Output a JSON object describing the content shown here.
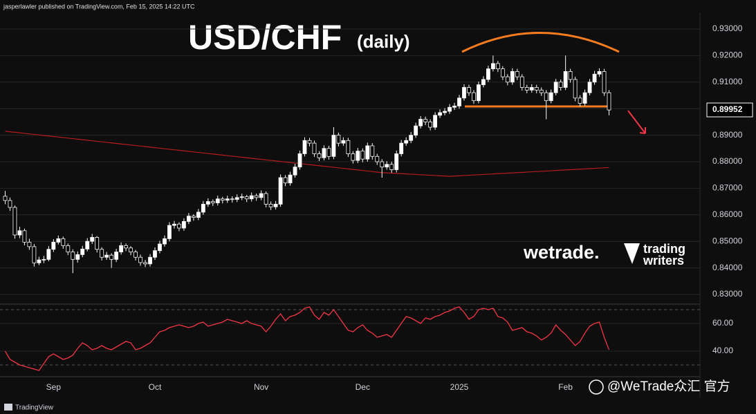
{
  "header": {
    "publisher": "jasperlawler published on TradingView.com, Feb 15, 2025 14:22 UTC"
  },
  "footer": {
    "brand": "TradingView"
  },
  "watermarks": {
    "broker": "wetrade.",
    "logo_top": "trading",
    "logo_bottom": "writers",
    "overlay": "@WeTrade众汇 官方"
  },
  "chart_data": [
    {
      "type": "candlestick",
      "title": "USD/CHF",
      "subtitle": "(daily)",
      "up_color": "#ffffff",
      "down_color": "#000000",
      "grid": true,
      "ylim": [
        0.82635,
        0.93573
      ],
      "yticks": [
        {
          "value": 0.93,
          "label": "0.93000"
        },
        {
          "value": 0.92,
          "label": "0.92000"
        },
        {
          "value": 0.91,
          "label": "0.91000"
        },
        {
          "value": 0.9,
          "label": "0.90000"
        },
        {
          "value": 0.89,
          "label": "0.89000"
        },
        {
          "value": 0.88,
          "label": "0.88000"
        },
        {
          "value": 0.87,
          "label": "0.87000"
        },
        {
          "value": 0.86,
          "label": "0.86000"
        },
        {
          "value": 0.85,
          "label": "0.85000"
        },
        {
          "value": 0.84,
          "label": "0.84000"
        },
        {
          "value": 0.83,
          "label": "0.83000"
        }
      ],
      "last_price": 0.89952,
      "categories": [
        null,
        null,
        null,
        null,
        null,
        null,
        null,
        null,
        null,
        null,
        "Sep",
        null,
        null,
        null,
        null,
        null,
        null,
        null,
        null,
        null,
        null,
        null,
        null,
        null,
        null,
        null,
        null,
        null,
        null,
        null,
        null,
        "Oct",
        null,
        null,
        null,
        null,
        null,
        null,
        null,
        null,
        null,
        null,
        null,
        null,
        null,
        null,
        null,
        null,
        null,
        null,
        null,
        null,
        null,
        "Nov",
        null,
        null,
        null,
        null,
        null,
        null,
        null,
        null,
        null,
        null,
        null,
        null,
        null,
        null,
        null,
        null,
        null,
        null,
        null,
        null,
        "Dec",
        null,
        null,
        null,
        null,
        null,
        null,
        null,
        null,
        null,
        null,
        null,
        null,
        null,
        null,
        null,
        null,
        null,
        null,
        null,
        "2025",
        null,
        null,
        null,
        null,
        null,
        null,
        null,
        null,
        null,
        null,
        null,
        null,
        null,
        null,
        null,
        null,
        null,
        null,
        null,
        null,
        null,
        "Feb",
        null,
        null,
        null,
        null,
        null,
        null,
        null,
        null,
        null
      ],
      "candles": [
        [
          0.867,
          0.869,
          0.864,
          0.8654
        ],
        [
          0.8654,
          0.8665,
          0.8615,
          0.8628
        ],
        [
          0.8628,
          0.8635,
          0.851,
          0.8524
        ],
        [
          0.8524,
          0.8555,
          0.8512,
          0.854
        ],
        [
          0.854,
          0.8548,
          0.8485,
          0.8497
        ],
        [
          0.8497,
          0.851,
          0.8468,
          0.848
        ],
        [
          0.848,
          0.849,
          0.8405,
          0.8419
        ],
        [
          0.8419,
          0.8442,
          0.841,
          0.843
        ],
        [
          0.843,
          0.8445,
          0.8418,
          0.8432
        ],
        [
          0.8432,
          0.8482,
          0.8425,
          0.847
        ],
        [
          0.847,
          0.8508,
          0.846,
          0.8497
        ],
        [
          0.8497,
          0.8522,
          0.8488,
          0.851
        ],
        [
          0.851,
          0.8518,
          0.8472,
          0.8484
        ],
        [
          0.8484,
          0.8492,
          0.8448,
          0.846
        ],
        [
          0.846,
          0.847,
          0.838,
          0.8432
        ],
        [
          0.8432,
          0.8462,
          0.842,
          0.845
        ],
        [
          0.845,
          0.8483,
          0.844,
          0.8471
        ],
        [
          0.8471,
          0.8512,
          0.8462,
          0.85
        ],
        [
          0.85,
          0.8528,
          0.849,
          0.8515
        ],
        [
          0.8515,
          0.852,
          0.8458,
          0.847
        ],
        [
          0.847,
          0.8478,
          0.8428,
          0.844
        ],
        [
          0.844,
          0.846,
          0.843,
          0.8448
        ],
        [
          0.8448,
          0.8455,
          0.84,
          0.8432
        ],
        [
          0.8432,
          0.8472,
          0.8422,
          0.846
        ],
        [
          0.846,
          0.8496,
          0.845,
          0.8484
        ],
        [
          0.8484,
          0.8492,
          0.8463,
          0.8475
        ],
        [
          0.8475,
          0.8482,
          0.8448,
          0.846
        ],
        [
          0.846,
          0.8468,
          0.8428,
          0.844
        ],
        [
          0.844,
          0.845,
          0.8408,
          0.842
        ],
        [
          0.842,
          0.843,
          0.8403,
          0.8415
        ],
        [
          0.8415,
          0.8452,
          0.8405,
          0.844
        ],
        [
          0.844,
          0.8477,
          0.843,
          0.8465
        ],
        [
          0.8465,
          0.8502,
          0.8455,
          0.849
        ],
        [
          0.849,
          0.8522,
          0.848,
          0.851
        ],
        [
          0.851,
          0.8572,
          0.85,
          0.856
        ],
        [
          0.856,
          0.8577,
          0.8548,
          0.8565
        ],
        [
          0.8565,
          0.8572,
          0.8538,
          0.855
        ],
        [
          0.855,
          0.8587,
          0.854,
          0.8575
        ],
        [
          0.8575,
          0.8607,
          0.8565,
          0.8595
        ],
        [
          0.8595,
          0.8602,
          0.8578,
          0.859
        ],
        [
          0.859,
          0.8622,
          0.858,
          0.861
        ],
        [
          0.861,
          0.8652,
          0.86,
          0.864
        ],
        [
          0.864,
          0.8662,
          0.863,
          0.865
        ],
        [
          0.865,
          0.8658,
          0.8633,
          0.8645
        ],
        [
          0.8645,
          0.8672,
          0.8635,
          0.866
        ],
        [
          0.866,
          0.8668,
          0.8643,
          0.8655
        ],
        [
          0.8655,
          0.8672,
          0.8645,
          0.866
        ],
        [
          0.866,
          0.867,
          0.8646,
          0.8658
        ],
        [
          0.8658,
          0.8677,
          0.8648,
          0.8665
        ],
        [
          0.8665,
          0.868,
          0.8655,
          0.8668
        ],
        [
          0.8668,
          0.8675,
          0.8648,
          0.866
        ],
        [
          0.866,
          0.8684,
          0.865,
          0.8672
        ],
        [
          0.8672,
          0.868,
          0.8653,
          0.8665
        ],
        [
          0.8665,
          0.8692,
          0.8655,
          0.868
        ],
        [
          0.868,
          0.8688,
          0.8628,
          0.864
        ],
        [
          0.864,
          0.865,
          0.8618,
          0.863
        ],
        [
          0.863,
          0.8652,
          0.862,
          0.864
        ],
        [
          0.864,
          0.8752,
          0.863,
          0.874
        ],
        [
          0.874,
          0.875,
          0.8708,
          0.872
        ],
        [
          0.872,
          0.8762,
          0.871,
          0.875
        ],
        [
          0.875,
          0.8792,
          0.874,
          0.878
        ],
        [
          0.878,
          0.8842,
          0.877,
          0.883
        ],
        [
          0.883,
          0.8892,
          0.882,
          0.888
        ],
        [
          0.888,
          0.889,
          0.8858,
          0.887
        ],
        [
          0.887,
          0.888,
          0.8818,
          0.883
        ],
        [
          0.883,
          0.884,
          0.8803,
          0.8815
        ],
        [
          0.8815,
          0.8862,
          0.8805,
          0.885
        ],
        [
          0.885,
          0.886,
          0.8808,
          0.882
        ],
        [
          0.882,
          0.893,
          0.881,
          0.89
        ],
        [
          0.89,
          0.891,
          0.8858,
          0.887
        ],
        [
          0.887,
          0.8892,
          0.886,
          0.888
        ],
        [
          0.888,
          0.889,
          0.8818,
          0.883
        ],
        [
          0.883,
          0.884,
          0.8793,
          0.8805
        ],
        [
          0.8805,
          0.8852,
          0.8795,
          0.884
        ],
        [
          0.884,
          0.885,
          0.8798,
          0.881
        ],
        [
          0.881,
          0.8872,
          0.88,
          0.886
        ],
        [
          0.886,
          0.887,
          0.8808,
          0.882
        ],
        [
          0.882,
          0.883,
          0.8788,
          0.88
        ],
        [
          0.88,
          0.881,
          0.874,
          0.878
        ],
        [
          0.878,
          0.8802,
          0.877,
          0.879
        ],
        [
          0.879,
          0.88,
          0.8758,
          0.877
        ],
        [
          0.877,
          0.8842,
          0.876,
          0.883
        ],
        [
          0.883,
          0.8882,
          0.882,
          0.887
        ],
        [
          0.887,
          0.8892,
          0.886,
          0.888
        ],
        [
          0.888,
          0.8912,
          0.887,
          0.89
        ],
        [
          0.89,
          0.8947,
          0.889,
          0.8935
        ],
        [
          0.8935,
          0.8972,
          0.8925,
          0.896
        ],
        [
          0.896,
          0.897,
          0.8938,
          0.895
        ],
        [
          0.895,
          0.896,
          0.8918,
          0.893
        ],
        [
          0.893,
          0.8987,
          0.892,
          0.8975
        ],
        [
          0.8975,
          0.8997,
          0.8965,
          0.8985
        ],
        [
          0.8985,
          0.9002,
          0.8975,
          0.899
        ],
        [
          0.899,
          0.9017,
          0.898,
          0.9005
        ],
        [
          0.9005,
          0.9022,
          0.8995,
          0.901
        ],
        [
          0.901,
          0.9052,
          0.9,
          0.904
        ],
        [
          0.904,
          0.9092,
          0.903,
          0.908
        ],
        [
          0.908,
          0.909,
          0.9048,
          0.906
        ],
        [
          0.906,
          0.907,
          0.9018,
          0.903
        ],
        [
          0.903,
          0.9102,
          0.902,
          0.909
        ],
        [
          0.909,
          0.9122,
          0.908,
          0.911
        ],
        [
          0.911,
          0.9162,
          0.91,
          0.915
        ],
        [
          0.915,
          0.92,
          0.914,
          0.917
        ],
        [
          0.917,
          0.918,
          0.9138,
          0.915
        ],
        [
          0.915,
          0.916,
          0.9108,
          0.912
        ],
        [
          0.912,
          0.913,
          0.9088,
          0.91
        ],
        [
          0.91,
          0.9152,
          0.909,
          0.914
        ],
        [
          0.914,
          0.915,
          0.9108,
          0.912
        ],
        [
          0.912,
          0.913,
          0.9068,
          0.908
        ],
        [
          0.908,
          0.909,
          0.9058,
          0.907
        ],
        [
          0.907,
          0.9092,
          0.906,
          0.908
        ],
        [
          0.908,
          0.909,
          0.9058,
          0.907
        ],
        [
          0.907,
          0.908,
          0.9048,
          0.906
        ],
        [
          0.906,
          0.907,
          0.896,
          0.903
        ],
        [
          0.903,
          0.9072,
          0.902,
          0.906
        ],
        [
          0.906,
          0.9112,
          0.905,
          0.91
        ],
        [
          0.91,
          0.911,
          0.9068,
          0.908
        ],
        [
          0.908,
          0.92,
          0.907,
          0.914
        ],
        [
          0.914,
          0.915,
          0.9098,
          0.911
        ],
        [
          0.911,
          0.912,
          0.9028,
          0.904
        ],
        [
          0.904,
          0.905,
          0.9008,
          0.902
        ],
        [
          0.902,
          0.9072,
          0.901,
          0.906
        ],
        [
          0.906,
          0.9112,
          0.905,
          0.91
        ],
        [
          0.91,
          0.9142,
          0.909,
          0.913
        ],
        [
          0.913,
          0.9152,
          0.912,
          0.914
        ],
        [
          0.914,
          0.915,
          0.9048,
          0.906
        ],
        [
          0.906,
          0.907,
          0.8975,
          0.8995
        ]
      ],
      "ma": {
        "color": "#b71c1c",
        "values": [
          0.8915,
          0.8913,
          0.8911,
          0.8909,
          0.8907,
          0.8905,
          0.8903,
          0.8901,
          0.8899,
          0.8897,
          0.8895,
          0.8893,
          0.8891,
          0.8889,
          0.8887,
          0.8885,
          0.8883,
          0.8881,
          0.8879,
          0.8877,
          0.8875,
          0.8873,
          0.8871,
          0.8869,
          0.8867,
          0.8865,
          0.8863,
          0.8861,
          0.8859,
          0.8857,
          0.8855,
          0.8853,
          0.8851,
          0.8849,
          0.8847,
          0.8845,
          0.8843,
          0.8841,
          0.8839,
          0.8837,
          0.8835,
          0.8833,
          0.8831,
          0.8829,
          0.8827,
          0.8825,
          0.8823,
          0.8821,
          0.8819,
          0.8817,
          0.8815,
          0.8813,
          0.8811,
          0.8809,
          0.8807,
          0.8805,
          0.8803,
          0.8801,
          0.8799,
          0.8797,
          0.8795,
          0.8793,
          0.8791,
          0.8789,
          0.8787,
          0.8785,
          0.8783,
          0.8781,
          0.8779,
          0.8777,
          0.8775,
          0.8773,
          0.8771,
          0.8769,
          0.8767,
          0.8765,
          0.8763,
          0.8761,
          0.8759,
          0.8758,
          0.8757,
          0.8756,
          0.8755,
          0.8754,
          0.8753,
          0.8752,
          0.8751,
          0.875,
          0.8749,
          0.8748,
          0.8747,
          0.8746,
          0.8745,
          0.8746,
          0.8747,
          0.8748,
          0.8749,
          0.875,
          0.8751,
          0.8752,
          0.8753,
          0.8754,
          0.8755,
          0.8756,
          0.8757,
          0.8758,
          0.8759,
          0.876,
          0.8761,
          0.8762,
          0.8763,
          0.8764,
          0.8765,
          0.8766,
          0.8767,
          0.8768,
          0.8769,
          0.877,
          0.8771,
          0.8772,
          0.8773,
          0.8774,
          0.8775,
          0.8776,
          0.8777,
          0.8778
        ]
      }
    },
    {
      "type": "line",
      "ylim": [
        21.5,
        71.5
      ],
      "bands": [
        30,
        70
      ],
      "yticks": [
        {
          "value": 60,
          "label": "60.00"
        },
        {
          "value": 40,
          "label": "40.00"
        }
      ],
      "series": [
        {
          "color": "#f23645",
          "values": [
            40,
            34,
            32,
            30,
            29,
            28,
            27,
            26,
            31,
            36,
            38,
            36,
            34,
            35,
            37,
            42,
            46,
            44,
            41,
            42,
            44,
            42,
            41,
            43,
            45,
            47,
            46,
            41,
            42,
            44,
            46,
            50,
            54,
            55,
            57,
            58,
            59,
            58,
            57,
            58,
            60,
            61,
            58,
            59,
            60,
            61,
            63,
            62,
            61,
            60,
            62,
            60,
            59,
            58,
            54,
            58,
            63,
            67,
            62,
            65,
            66,
            68,
            71,
            72,
            66,
            63,
            68,
            66,
            70,
            65,
            60,
            55,
            54,
            57,
            59,
            55,
            53,
            50,
            51,
            52,
            50,
            55,
            60,
            65,
            64,
            62,
            60,
            64,
            63,
            65,
            66,
            68,
            69,
            71,
            72,
            68,
            63,
            65,
            70,
            71,
            70,
            71,
            65,
            64,
            61,
            55,
            56,
            57,
            54,
            53,
            51,
            48,
            50,
            53,
            59,
            55,
            52,
            48,
            44,
            47,
            53,
            58,
            60,
            61,
            50,
            41
          ]
        }
      ]
    }
  ]
}
